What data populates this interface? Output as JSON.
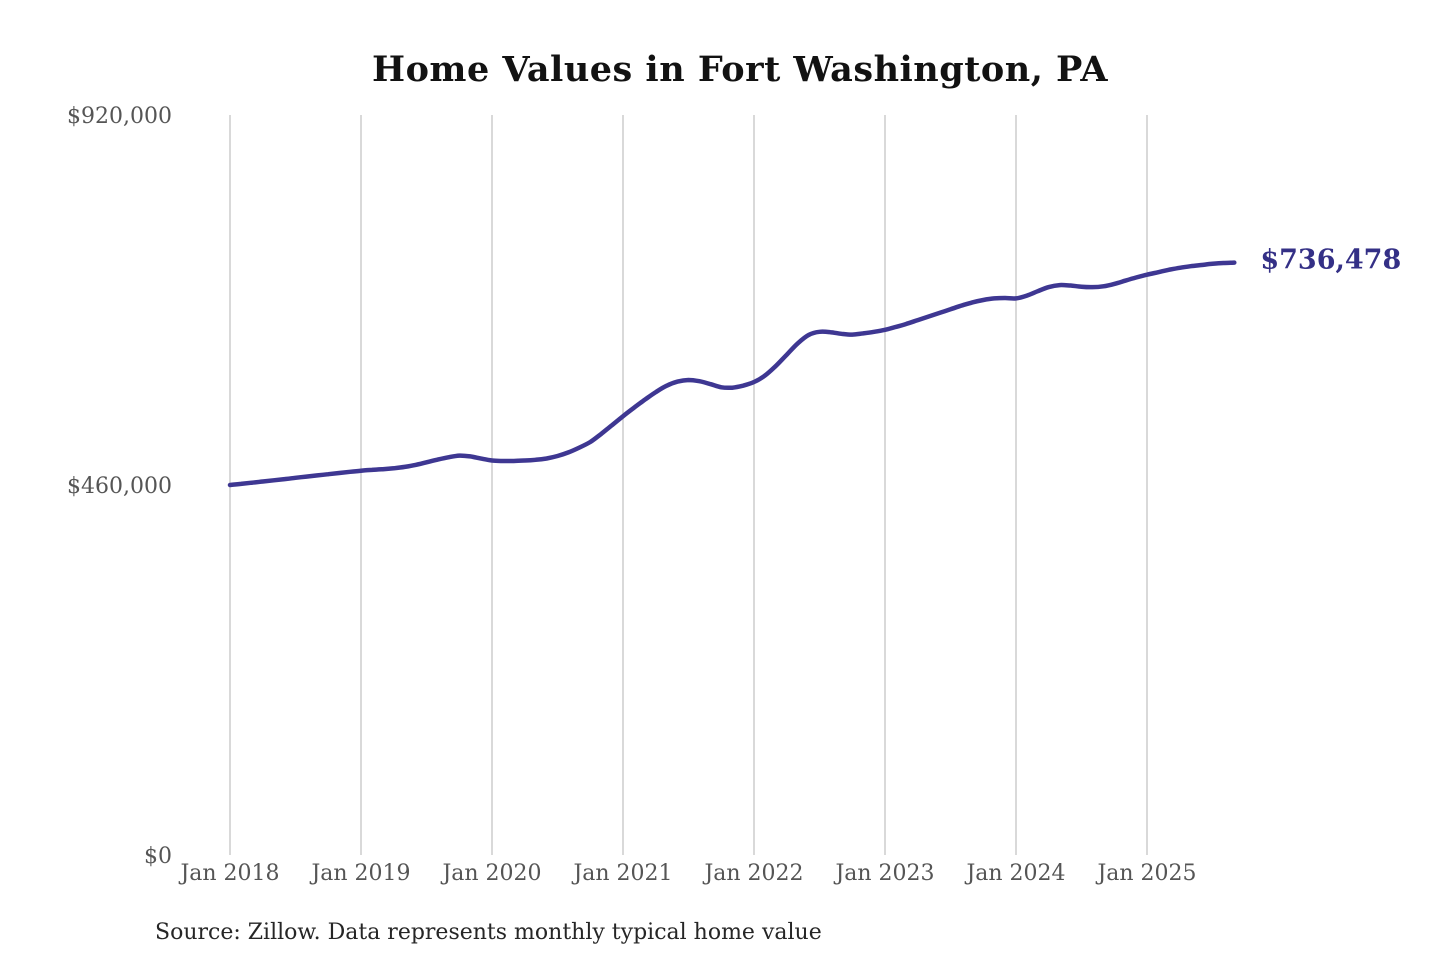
{
  "page": {
    "background": "#ffffff"
  },
  "chart_data": {
    "type": "line",
    "title": "Home Values in Fort Washington, PA",
    "source": "Source: Zillow. Data represents monthly typical home value",
    "last_value_label": "$736,478",
    "last_value": 736478,
    "ylim": [
      0,
      920000
    ],
    "y_ticks": [
      0,
      460000,
      920000
    ],
    "y_tick_labels": [
      "$0",
      "$460,000",
      "$920,000"
    ],
    "x_tick_labels": [
      "Jan 2018",
      "Jan 2019",
      "Jan 2020",
      "Jan 2021",
      "Jan 2022",
      "Jan 2023",
      "Jan 2024",
      "Jan 2025"
    ],
    "x_tick_month_index": [
      0,
      12,
      24,
      36,
      48,
      60,
      72,
      84
    ],
    "grid": "vertical-only",
    "legend": "none",
    "colors": {
      "line": "#3e3792",
      "annotation": "#343086",
      "grid": "#c9c9c9",
      "tick_text": "#555555",
      "title_text": "#121212",
      "source_text": "#262626",
      "background": "#ffffff"
    },
    "series": [
      {
        "name": "Monthly typical home value",
        "x": [
          "2018-01",
          "2018-02",
          "2018-03",
          "2018-04",
          "2018-05",
          "2018-06",
          "2018-07",
          "2018-08",
          "2018-09",
          "2018-10",
          "2018-11",
          "2018-12",
          "2019-01",
          "2019-02",
          "2019-03",
          "2019-04",
          "2019-05",
          "2019-06",
          "2019-07",
          "2019-08",
          "2019-09",
          "2019-10",
          "2019-11",
          "2019-12",
          "2020-01",
          "2020-02",
          "2020-03",
          "2020-04",
          "2020-05",
          "2020-06",
          "2020-07",
          "2020-08",
          "2020-09",
          "2020-10",
          "2020-11",
          "2020-12",
          "2021-01",
          "2021-02",
          "2021-03",
          "2021-04",
          "2021-05",
          "2021-06",
          "2021-07",
          "2021-08",
          "2021-09",
          "2021-10",
          "2021-11",
          "2021-12",
          "2022-01",
          "2022-02",
          "2022-03",
          "2022-04",
          "2022-05",
          "2022-06",
          "2022-07",
          "2022-08",
          "2022-09",
          "2022-10",
          "2022-11",
          "2022-12",
          "2023-01",
          "2023-02",
          "2023-03",
          "2023-04",
          "2023-05",
          "2023-06",
          "2023-07",
          "2023-08",
          "2023-09",
          "2023-10",
          "2023-11",
          "2023-12",
          "2024-01",
          "2024-02",
          "2024-03",
          "2024-04",
          "2024-05",
          "2024-06",
          "2024-07",
          "2024-08",
          "2024-09",
          "2024-10",
          "2024-11",
          "2024-12",
          "2025-01",
          "2025-02",
          "2025-03",
          "2025-04",
          "2025-05",
          "2025-06",
          "2025-07",
          "2025-08",
          "2025-09"
        ],
        "values": [
          460000,
          461400,
          462800,
          464300,
          465800,
          467300,
          468900,
          470400,
          471900,
          473400,
          474900,
          476400,
          477800,
          478800,
          479700,
          480800,
          482500,
          485000,
          488200,
          491500,
          494500,
          496500,
          495500,
          492800,
          490500,
          489800,
          489900,
          490400,
          491300,
          493000,
          496000,
          500500,
          506500,
          513500,
          523500,
          534500,
          545500,
          556000,
          566000,
          575500,
          583500,
          588500,
          590500,
          589000,
          585500,
          581500,
          581000,
          583500,
          588000,
          596000,
          608000,
          622000,
          636000,
          646500,
          650500,
          650000,
          648000,
          647000,
          648500,
          650500,
          653000,
          656500,
          660500,
          665000,
          669500,
          674000,
          678500,
          683000,
          687000,
          690000,
          692000,
          692500,
          692000,
          695500,
          701000,
          706000,
          708500,
          708000,
          706500,
          706000,
          707000,
          710000,
          714000,
          718000,
          721500,
          724500,
          727500,
          730000,
          732000,
          733500,
          735000,
          736000,
          736478
        ]
      }
    ]
  }
}
